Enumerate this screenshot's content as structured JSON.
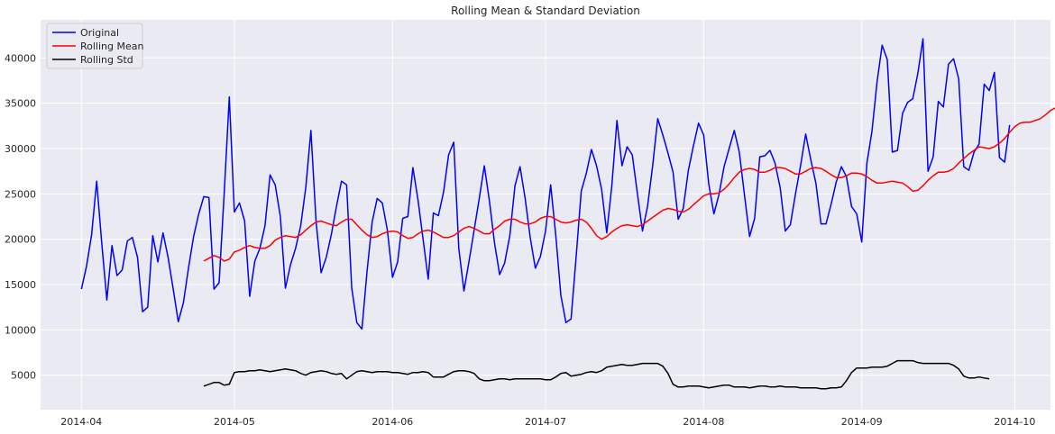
{
  "chart_data": {
    "type": "line",
    "title": "Rolling Mean & Standard Deviation",
    "xlabel": "",
    "ylabel": "",
    "x_start": "2014-04-01",
    "xlim": [
      "2014-03-24",
      "2014-10-08"
    ],
    "ylim": [
      1200,
      44200
    ],
    "x_ticks": [
      {
        "date": "2014-04-01",
        "label": "2014-04"
      },
      {
        "date": "2014-05-01",
        "label": "2014-05"
      },
      {
        "date": "2014-06-01",
        "label": "2014-06"
      },
      {
        "date": "2014-07-01",
        "label": "2014-07"
      },
      {
        "date": "2014-08-01",
        "label": "2014-08"
      },
      {
        "date": "2014-09-01",
        "label": "2014-09"
      },
      {
        "date": "2014-10-01",
        "label": "2014-10"
      }
    ],
    "y_ticks": [
      {
        "value": 5000,
        "label": "5000"
      },
      {
        "value": 10000,
        "label": "10000"
      },
      {
        "value": 15000,
        "label": "15000"
      },
      {
        "value": 20000,
        "label": "20000"
      },
      {
        "value": 25000,
        "label": "25000"
      },
      {
        "value": 30000,
        "label": "30000"
      },
      {
        "value": 35000,
        "label": "35000"
      },
      {
        "value": 40000,
        "label": "40000"
      }
    ],
    "grid": true,
    "legend_position": "top-left",
    "background": "#eaeaf2",
    "grid_color": "#ffffff",
    "series": [
      {
        "name": "Original",
        "color": "#0000ff",
        "values": [
          14500,
          17000,
          20500,
          26400,
          19500,
          13300,
          19300,
          16000,
          16600,
          19800,
          20200,
          18000,
          12000,
          12500,
          20400,
          17500,
          20700,
          18000,
          14500,
          10900,
          13000,
          16800,
          20300,
          22800,
          24700,
          24600,
          14500,
          15200,
          25000,
          35700,
          23000,
          24000,
          22000,
          13700,
          17600,
          19000,
          21500,
          27100,
          26000,
          22500,
          14600,
          17200,
          19000,
          21500,
          25700,
          32000,
          22000,
          16300,
          18000,
          20500,
          23600,
          26400,
          26000,
          14600,
          10800,
          10100,
          16400,
          21900,
          24500,
          24000,
          21000,
          15800,
          17500,
          22300,
          22500,
          27900,
          24300,
          20000,
          15600,
          22900,
          22600,
          25200,
          29300,
          30700,
          19000,
          14300,
          17600,
          21000,
          24500,
          28100,
          24200,
          19600,
          16100,
          17400,
          20400,
          25900,
          28000,
          24500,
          20200,
          16800,
          18100,
          20900,
          26000,
          20500,
          13800,
          10800,
          11200,
          18000,
          25300,
          27300,
          29900,
          28100,
          25500,
          20700,
          25900,
          33100,
          28100,
          30200,
          29300,
          25100,
          20900,
          23600,
          28100,
          33300,
          31500,
          29500,
          27400,
          22200,
          23400,
          27600,
          30300,
          32800,
          31500,
          26100,
          22800,
          24900,
          28000,
          30000,
          32000,
          29600,
          24900,
          20300,
          22300,
          29100,
          29200,
          29800,
          28400,
          25700,
          20900,
          21600,
          25000,
          28100,
          31600,
          28800,
          26200,
          21700,
          21700,
          23900,
          26300,
          28000,
          26900,
          23600,
          22800,
          19700,
          28400,
          31900,
          37400,
          41400,
          39800,
          29600,
          29800,
          33900,
          35100,
          35500,
          38300,
          42100,
          27500,
          29100,
          35200,
          34600,
          39300,
          39900,
          37700,
          28000,
          27600,
          29600,
          30500,
          37100,
          36400,
          38400,
          29000,
          28500,
          32600
        ]
      },
      {
        "name": "Rolling Mean",
        "color": "#ff0000",
        "start_index": 24,
        "values": [
          17600,
          17900,
          18200,
          18000,
          17600,
          17800,
          18600,
          18800,
          19100,
          19300,
          19100,
          19000,
          19000,
          19300,
          19900,
          20200,
          20400,
          20300,
          20200,
          20500,
          21000,
          21500,
          21900,
          22000,
          21800,
          21600,
          21500,
          21900,
          22200,
          22200,
          21600,
          21000,
          20500,
          20200,
          20300,
          20600,
          20800,
          20900,
          20800,
          20400,
          20100,
          20200,
          20600,
          20900,
          21000,
          20800,
          20500,
          20200,
          20200,
          20400,
          20800,
          21200,
          21400,
          21200,
          20900,
          20600,
          20600,
          21100,
          21500,
          22000,
          22200,
          22200,
          21900,
          21700,
          21700,
          21900,
          22300,
          22500,
          22500,
          22200,
          21900,
          21800,
          21900,
          22100,
          22200,
          21900,
          21200,
          20400,
          20000,
          20300,
          20800,
          21200,
          21500,
          21600,
          21500,
          21400,
          21600,
          22000,
          22400,
          22800,
          23200,
          23400,
          23300,
          23100,
          23000,
          23300,
          23800,
          24300,
          24800,
          25000,
          25000,
          25100,
          25500,
          26100,
          26800,
          27400,
          27700,
          27800,
          27700,
          27400,
          27400,
          27600,
          27900,
          27900,
          27800,
          27500,
          27200,
          27200,
          27500,
          27800,
          27900,
          27800,
          27500,
          27100,
          26800,
          26800,
          27000,
          27300,
          27300,
          27200,
          26900,
          26500,
          26200,
          26200,
          26300,
          26400,
          26300,
          26200,
          25800,
          25300,
          25400,
          25900,
          26500,
          27000,
          27400,
          27400,
          27500,
          27800,
          28400,
          28900,
          29400,
          29800,
          30200,
          30100,
          30000,
          30200,
          30600,
          31100,
          31800,
          32400,
          32800,
          32900,
          32900,
          33100,
          33300,
          33700,
          34200,
          34500,
          34700,
          34400,
          33900,
          33600
        ]
      },
      {
        "name": "Rolling Std",
        "color": "#000000",
        "start_index": 24,
        "values": [
          3800,
          4000,
          4200,
          4200,
          3900,
          4000,
          5300,
          5400,
          5400,
          5500,
          5500,
          5600,
          5500,
          5400,
          5500,
          5600,
          5700,
          5600,
          5500,
          5200,
          5000,
          5300,
          5400,
          5500,
          5400,
          5200,
          5100,
          5200,
          4600,
          5000,
          5400,
          5500,
          5400,
          5300,
          5400,
          5400,
          5400,
          5300,
          5300,
          5200,
          5100,
          5300,
          5300,
          5400,
          5300,
          4800,
          4800,
          4800,
          5100,
          5400,
          5500,
          5500,
          5400,
          5200,
          4600,
          4400,
          4400,
          4500,
          4600,
          4600,
          4500,
          4600,
          4600,
          4600,
          4600,
          4600,
          4600,
          4500,
          4500,
          4800,
          5200,
          5300,
          4900,
          5000,
          5100,
          5300,
          5400,
          5300,
          5500,
          5900,
          6000,
          6100,
          6200,
          6100,
          6100,
          6200,
          6300,
          6300,
          6300,
          6300,
          6000,
          5200,
          4000,
          3700,
          3700,
          3800,
          3800,
          3800,
          3700,
          3600,
          3700,
          3800,
          3900,
          3900,
          3700,
          3700,
          3700,
          3600,
          3700,
          3800,
          3800,
          3700,
          3700,
          3800,
          3700,
          3700,
          3700,
          3600,
          3600,
          3600,
          3600,
          3500,
          3500,
          3600,
          3600,
          3700,
          4400,
          5300,
          5800,
          5800,
          5800,
          5900,
          5900,
          5900,
          6000,
          6300,
          6600,
          6600,
          6600,
          6600,
          6400,
          6300,
          6300,
          6300,
          6300,
          6300,
          6300,
          6100,
          5700,
          4900,
          4700,
          4700,
          4800,
          4700,
          4600
        ]
      }
    ]
  }
}
